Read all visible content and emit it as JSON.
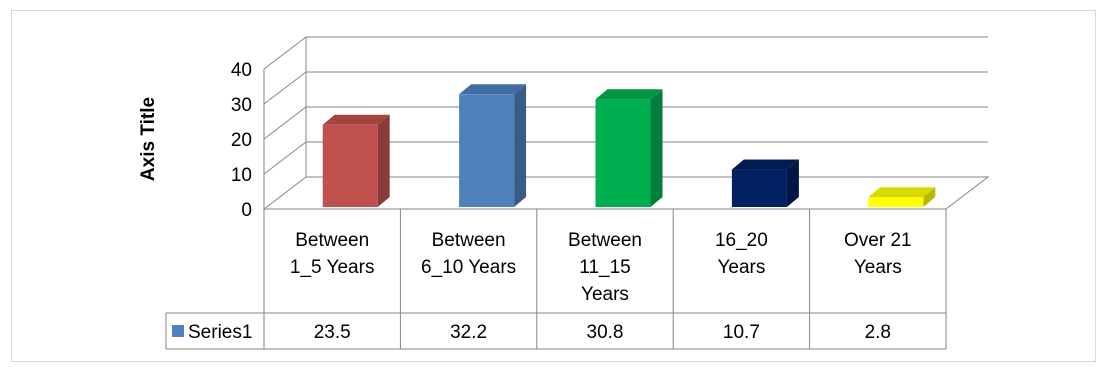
{
  "chart_data": {
    "type": "bar",
    "style": "3d-column",
    "ylabel": "Axis Title",
    "xlabel": "",
    "title": "",
    "ylim": [
      0,
      40
    ],
    "yticks": [
      0,
      10,
      20,
      30,
      40
    ],
    "grid": true,
    "legend": "table-bottom",
    "categories": [
      [
        "Between",
        "1_5 Years"
      ],
      [
        "Between",
        "6_10 Years"
      ],
      [
        "Between",
        "11_15",
        "Years"
      ],
      [
        "16_20",
        "Years"
      ],
      [
        "Over 21",
        "Years"
      ]
    ],
    "series": [
      {
        "name": "Series1",
        "values": [
          23.5,
          32.2,
          30.8,
          10.7,
          2.8
        ],
        "value_labels": [
          "23.5",
          "32.2",
          "30.8",
          "10.7",
          "2.8"
        ],
        "colors": [
          "#c0504d",
          "#4f81bd",
          "#00b050",
          "#002060",
          "#ffff00"
        ],
        "legend_color": "#4f81bd"
      }
    ]
  }
}
